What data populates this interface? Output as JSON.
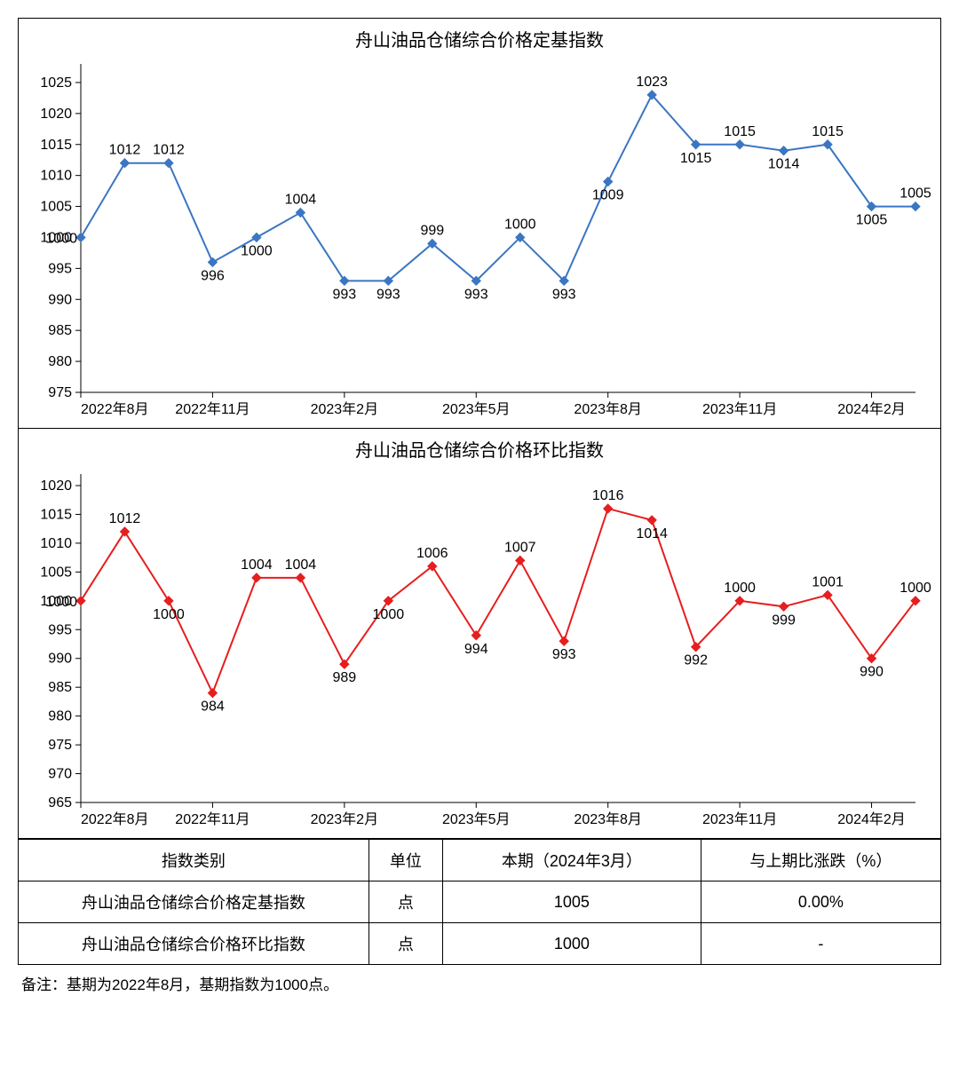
{
  "chart1": {
    "title": "舟山油品仓储综合价格定基指数",
    "type": "line",
    "line_color": "#3a76c2",
    "marker_color": "#3a76c2",
    "marker_style": "diamond",
    "marker_size": 5,
    "line_width": 2,
    "background_color": "#ffffff",
    "border_color": "#000000",
    "ylim": [
      975,
      1028
    ],
    "yticks": [
      975,
      980,
      985,
      990,
      995,
      1000,
      1005,
      1010,
      1015,
      1020,
      1025
    ],
    "xtick_labels": [
      "2022年8月",
      "2022年11月",
      "2023年2月",
      "2023年5月",
      "2023年8月",
      "2023年11月",
      "2024年2月"
    ],
    "xtick_indices": [
      0,
      3,
      6,
      9,
      12,
      15,
      18
    ],
    "values": [
      1000,
      1012,
      1012,
      996,
      1000,
      1004,
      993,
      993,
      999,
      993,
      1000,
      993,
      1009,
      1023,
      1015,
      1015,
      1014,
      1015,
      1005,
      1005
    ],
    "label_fontsize": 16,
    "title_fontsize": 20
  },
  "chart2": {
    "title": "舟山油品仓储综合价格环比指数",
    "type": "line",
    "line_color": "#e61e1e",
    "marker_color": "#e61e1e",
    "marker_style": "diamond",
    "marker_size": 5,
    "line_width": 2,
    "background_color": "#ffffff",
    "border_color": "#000000",
    "ylim": [
      965,
      1022
    ],
    "yticks": [
      965,
      970,
      975,
      980,
      985,
      990,
      995,
      1000,
      1005,
      1010,
      1015,
      1020
    ],
    "xtick_labels": [
      "2022年8月",
      "2022年11月",
      "2023年2月",
      "2023年5月",
      "2023年8月",
      "2023年11月",
      "2024年2月"
    ],
    "xtick_indices": [
      0,
      3,
      6,
      9,
      12,
      15,
      18
    ],
    "values": [
      1000,
      1012,
      1000,
      984,
      1004,
      1004,
      989,
      1000,
      1006,
      994,
      1007,
      993,
      1016,
      1014,
      992,
      1000,
      999,
      1001,
      990,
      1000
    ],
    "label_fontsize": 16,
    "title_fontsize": 20
  },
  "table": {
    "columns": [
      "指数类别",
      "单位",
      "本期（2024年3月）",
      "与上期比涨跌（%）"
    ],
    "rows": [
      [
        "舟山油品仓储综合价格定基指数",
        "点",
        "1005",
        "0.00%"
      ],
      [
        "舟山油品仓储综合价格环比指数",
        "点",
        "1000",
        "-"
      ]
    ],
    "col_widths": [
      "38%",
      "8%",
      "28%",
      "26%"
    ],
    "border_color": "#000000",
    "font_size": 18
  },
  "footnote": "备注：基期为2022年8月，基期指数为1000点。"
}
